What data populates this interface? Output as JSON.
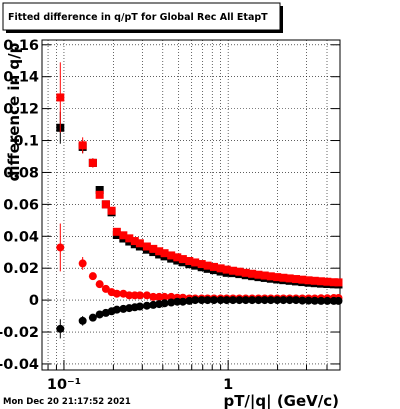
{
  "chart_data": {
    "type": "scatter",
    "title": "Fitted difference in q/pT for Global Rec All EtapT",
    "x_label": "pT/|q| (GeV/c)",
    "y_label": "difference in q/p",
    "timestamp": "Mon Dec 20 21:17:52 2021",
    "x_log": true,
    "grid": true,
    "xlim": [
      0.0735,
      4.8
    ],
    "ylim": [
      -0.0438,
      0.163
    ],
    "xticks": [
      {
        "value": 0.1,
        "label": "10⁻¹"
      },
      1
    ],
    "xminor": [
      0.08,
      0.09,
      0.2,
      0.3,
      0.4,
      0.5,
      0.6,
      0.7,
      0.8,
      0.9,
      2,
      3,
      4
    ],
    "yticks": [
      -0.04,
      -0.02,
      0,
      0.02,
      0.04,
      0.06,
      0.08,
      0.1,
      0.12,
      0.14,
      0.16
    ],
    "x": [
      0.095,
      0.13,
      0.15,
      0.165,
      0.18,
      0.195,
      0.21,
      0.23,
      0.25,
      0.27,
      0.29,
      0.32,
      0.35,
      0.38,
      0.41,
      0.45,
      0.49,
      0.53,
      0.58,
      0.63,
      0.69,
      0.75,
      0.82,
      0.9,
      0.98,
      1.07,
      1.17,
      1.28,
      1.4,
      1.53,
      1.67,
      1.82,
      1.99,
      2.17,
      2.37,
      2.59,
      2.83,
      3.09,
      3.37,
      3.68,
      4.02,
      4.4,
      4.7
    ],
    "series": [
      {
        "color": "#000000",
        "marker": "square",
        "values": [
          0.108,
          0.096,
          0.086,
          0.069,
          0.06,
          0.055,
          0.0408,
          0.0386,
          0.0367,
          0.035,
          0.0336,
          0.0316,
          0.0301,
          0.0286,
          0.0274,
          0.026,
          0.0248,
          0.0237,
          0.0225,
          0.0216,
          0.0206,
          0.0196,
          0.0188,
          0.0179,
          0.0171,
          0.0169,
          0.0163,
          0.0156,
          0.015,
          0.0144,
          0.0139,
          0.0134,
          0.0129,
          0.0125,
          0.0121,
          0.0117,
          0.0113,
          0.0109,
          0.0106,
          0.0103,
          0.0101,
          0.0099,
          0.0098
        ],
        "errors": [
          0.01,
          0.004,
          0.002,
          0.002,
          0.001,
          0.001,
          0.001,
          0.001,
          0.001,
          0.001,
          0.001,
          0.001,
          0.001,
          0.001,
          0.001,
          0.001,
          0.001,
          0.001,
          0.001,
          0.001,
          0.001,
          0.001,
          0.001,
          0.001,
          0.001,
          0.001,
          0.001,
          0.001,
          0.001,
          0.001,
          0.001,
          0.001,
          0.001,
          0.001,
          0.001,
          0.001,
          0.001,
          0.001,
          0.001,
          0.001,
          0.001,
          0.001,
          0.001
        ]
      },
      {
        "color": "#ff0000",
        "marker": "square",
        "values": [
          0.127,
          0.097,
          0.086,
          0.066,
          0.06,
          0.056,
          0.0428,
          0.0406,
          0.0387,
          0.037,
          0.0356,
          0.0336,
          0.0321,
          0.0306,
          0.0294,
          0.028,
          0.0268,
          0.0257,
          0.0245,
          0.0236,
          0.0226,
          0.0216,
          0.0208,
          0.0199,
          0.0191,
          0.0184,
          0.0178,
          0.0171,
          0.0165,
          0.0159,
          0.0154,
          0.0149,
          0.0144,
          0.014,
          0.0136,
          0.0132,
          0.0128,
          0.0124,
          0.0121,
          0.0118,
          0.0115,
          0.0112,
          0.0111
        ],
        "errors": [
          0.022,
          0.005,
          0.003,
          0.002,
          0.001,
          0.001,
          0.001,
          0.001,
          0.001,
          0.001,
          0.001,
          0.001,
          0.001,
          0.001,
          0.001,
          0.001,
          0.001,
          0.001,
          0.001,
          0.001,
          0.001,
          0.001,
          0.001,
          0.001,
          0.001,
          0.001,
          0.001,
          0.001,
          0.001,
          0.001,
          0.001,
          0.001,
          0.001,
          0.001,
          0.001,
          0.001,
          0.001,
          0.001,
          0.001,
          0.001,
          0.001,
          0.001,
          0.001
        ]
      },
      {
        "color": "#ff0000",
        "marker": "circle",
        "values": [
          0.033,
          0.023,
          0.015,
          0.01,
          0.007,
          0.005,
          0.004,
          0.004,
          0.003,
          0.003,
          0.003,
          0.003,
          0.002,
          0.002,
          0.002,
          0.002,
          0.0015,
          0.0015,
          0.001,
          0.001,
          0.001,
          0.001,
          0.001,
          0.001,
          0.001,
          0.001,
          0.001,
          0.001,
          0.001,
          0.001,
          0.001,
          0.001,
          0.001,
          0.001,
          0.001,
          0.001,
          0.001,
          0.001,
          0.001,
          0.0012,
          0.0012,
          0.0013,
          0.0013
        ],
        "errors": [
          0.015,
          0.004,
          0.002,
          0.002,
          0.001,
          0.001,
          0.001,
          0.001,
          0.001,
          0.001,
          0.001,
          0.001,
          0.001,
          0.001,
          0.001,
          0.001,
          0.001,
          0.001,
          0.001,
          0.001,
          0.001,
          0.001,
          0.001,
          0.001,
          0.001,
          0.001,
          0.001,
          0.001,
          0.001,
          0.001,
          0.001,
          0.001,
          0.001,
          0.001,
          0.001,
          0.001,
          0.001,
          0.001,
          0.001,
          0.001,
          0.001,
          0.001,
          0.001
        ]
      },
      {
        "color": "#000000",
        "marker": "circle",
        "values": [
          -0.018,
          -0.013,
          -0.011,
          -0.009,
          -0.008,
          -0.007,
          -0.006,
          -0.0055,
          -0.005,
          -0.0045,
          -0.004,
          -0.0035,
          -0.003,
          -0.0025,
          -0.002,
          -0.0015,
          -0.001,
          -0.001,
          -0.0005,
          0,
          0,
          0,
          0,
          0,
          0,
          0,
          0,
          0,
          0,
          0,
          0,
          0,
          0,
          0,
          0,
          0,
          -0.0003,
          -0.0003,
          -0.0004,
          -0.0005,
          -0.0005,
          -0.0005,
          -0.0005
        ],
        "errors": [
          0.006,
          0.003,
          0.002,
          0.001,
          0.001,
          0.001,
          0.001,
          0.001,
          0.001,
          0.001,
          0.001,
          0.001,
          0.001,
          0.001,
          0.001,
          0.001,
          0.001,
          0.001,
          0.001,
          0.001,
          0.001,
          0.001,
          0.001,
          0.001,
          0.001,
          0.001,
          0.001,
          0.001,
          0.001,
          0.001,
          0.001,
          0.001,
          0.001,
          0.001,
          0.001,
          0.001,
          0.001,
          0.001,
          0.001,
          0.001,
          0.001,
          0.001,
          0.001
        ]
      }
    ]
  }
}
